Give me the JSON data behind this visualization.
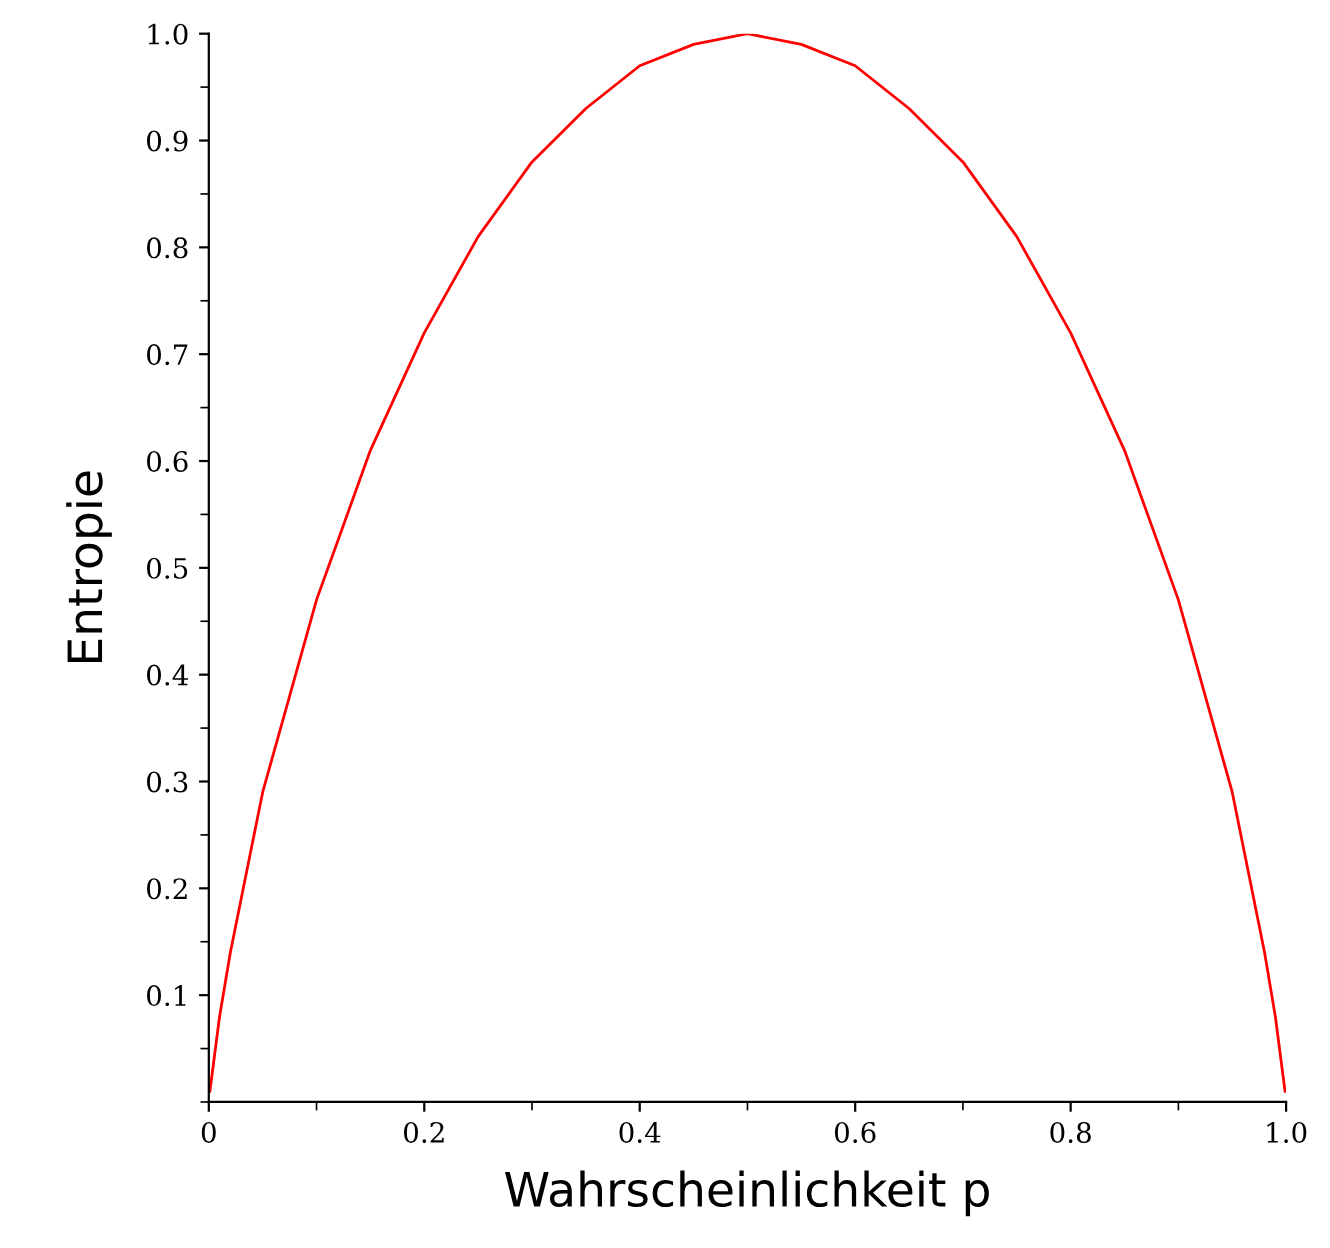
{
  "chart_data": {
    "type": "line",
    "xlabel": "Wahrscheinlichkeit p",
    "ylabel": "Entropie",
    "x": [
      0.001,
      0.01,
      0.02,
      0.03,
      0.05,
      0.075,
      0.1,
      0.15,
      0.2,
      0.25,
      0.3,
      0.35,
      0.4,
      0.45,
      0.5,
      0.55,
      0.6,
      0.65,
      0.7,
      0.75,
      0.8,
      0.85,
      0.9,
      0.925,
      0.95,
      0.97,
      0.98,
      0.99,
      0.999
    ],
    "series": [
      {
        "color": "#ff0000",
        "values": [
          0.01,
          0.08,
          0.14,
          0.19,
          0.29,
          0.38,
          0.47,
          0.61,
          0.72,
          0.81,
          0.88,
          0.93,
          0.97,
          0.99,
          1.0,
          0.99,
          0.97,
          0.93,
          0.88,
          0.81,
          0.72,
          0.61,
          0.47,
          0.38,
          0.29,
          0.19,
          0.14,
          0.08,
          0.01
        ]
      }
    ],
    "xlim": [
      0,
      1
    ],
    "ylim": [
      0,
      1
    ],
    "xticks": [
      {
        "value": 0,
        "label": "0"
      },
      0.2,
      0.4,
      0.6,
      0.8,
      {
        "value": 1,
        "label": "1.0"
      }
    ],
    "yticks": [
      0.1,
      0.2,
      0.3,
      0.4,
      0.5,
      0.6,
      0.7,
      0.8,
      0.9,
      {
        "value": 1,
        "label": "1.0"
      }
    ],
    "grid": false,
    "legend": false,
    "marker": "none",
    "line_style": "solid"
  }
}
